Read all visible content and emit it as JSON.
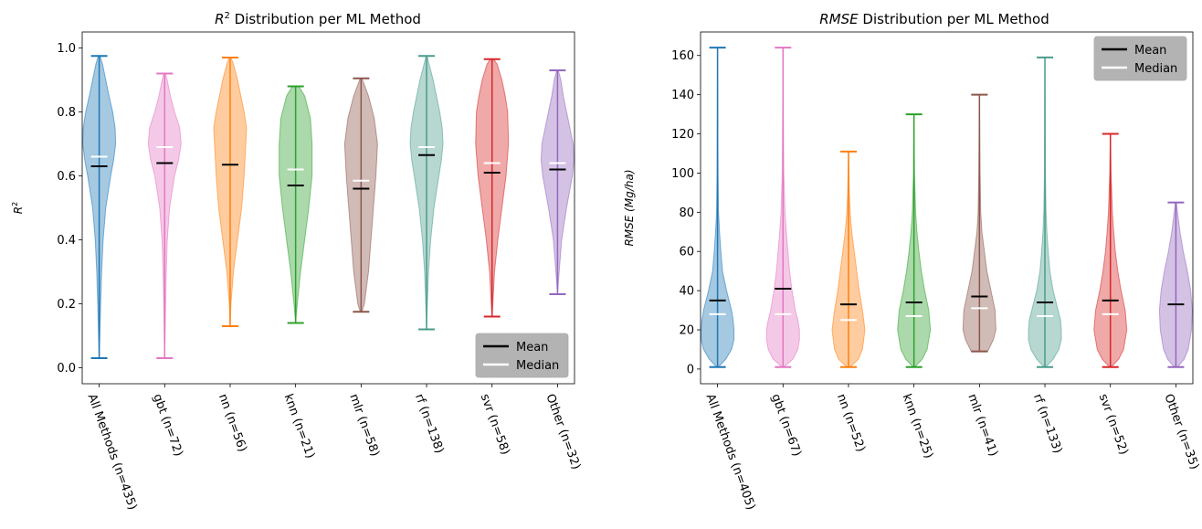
{
  "chart_data": [
    {
      "type": "violin",
      "title_main": "R",
      "title_sup": "2",
      "title_rest": " Distribution per ML Method",
      "ylabel_main": "R",
      "ylabel_sup": "2",
      "ylim": [
        -0.05,
        1.05
      ],
      "yticks": [
        "0.0",
        "0.2",
        "0.4",
        "0.6",
        "0.8",
        "1.0"
      ],
      "ytick_values": [
        0.0,
        0.2,
        0.4,
        0.6,
        0.8,
        1.0
      ],
      "legend": {
        "position": "lower right",
        "entries": [
          "Mean",
          "Median"
        ]
      },
      "series": [
        {
          "name": "All Methods (n=435)",
          "color": "#1f77b4",
          "min": 0.03,
          "max": 0.975,
          "mean": 0.63,
          "median": 0.66,
          "density": [
            [
              0.03,
              0.0
            ],
            [
              0.1,
              0.04
            ],
            [
              0.2,
              0.09
            ],
            [
              0.3,
              0.15
            ],
            [
              0.4,
              0.24
            ],
            [
              0.5,
              0.4
            ],
            [
              0.6,
              0.7
            ],
            [
              0.65,
              0.88
            ],
            [
              0.7,
              1.0
            ],
            [
              0.75,
              0.97
            ],
            [
              0.8,
              0.82
            ],
            [
              0.85,
              0.6
            ],
            [
              0.9,
              0.4
            ],
            [
              0.95,
              0.2
            ],
            [
              0.975,
              0.05
            ]
          ]
        },
        {
          "name": "gbt (n=72)",
          "color": "#e377c2",
          "min": 0.03,
          "max": 0.92,
          "mean": 0.64,
          "median": 0.69,
          "density": [
            [
              0.03,
              0.0
            ],
            [
              0.1,
              0.03
            ],
            [
              0.2,
              0.06
            ],
            [
              0.3,
              0.1
            ],
            [
              0.4,
              0.16
            ],
            [
              0.5,
              0.3
            ],
            [
              0.6,
              0.6
            ],
            [
              0.65,
              0.85
            ],
            [
              0.7,
              1.0
            ],
            [
              0.75,
              0.92
            ],
            [
              0.8,
              0.6
            ],
            [
              0.85,
              0.35
            ],
            [
              0.9,
              0.15
            ],
            [
              0.92,
              0.05
            ]
          ]
        },
        {
          "name": "nn (n=56)",
          "color": "#ff7f0e",
          "min": 0.13,
          "max": 0.97,
          "mean": 0.635,
          "median": 0.635,
          "density": [
            [
              0.13,
              0.0
            ],
            [
              0.2,
              0.05
            ],
            [
              0.3,
              0.2
            ],
            [
              0.4,
              0.45
            ],
            [
              0.5,
              0.7
            ],
            [
              0.6,
              0.85
            ],
            [
              0.7,
              0.95
            ],
            [
              0.75,
              1.0
            ],
            [
              0.8,
              0.85
            ],
            [
              0.85,
              0.65
            ],
            [
              0.9,
              0.45
            ],
            [
              0.95,
              0.2
            ],
            [
              0.97,
              0.05
            ]
          ]
        },
        {
          "name": "knn (n=21)",
          "color": "#2ca02c",
          "min": 0.14,
          "max": 0.88,
          "mean": 0.57,
          "median": 0.62,
          "density": [
            [
              0.14,
              0.0
            ],
            [
              0.2,
              0.1
            ],
            [
              0.3,
              0.3
            ],
            [
              0.4,
              0.55
            ],
            [
              0.5,
              0.8
            ],
            [
              0.6,
              1.0
            ],
            [
              0.7,
              1.0
            ],
            [
              0.78,
              0.9
            ],
            [
              0.85,
              0.55
            ],
            [
              0.88,
              0.2
            ]
          ]
        },
        {
          "name": "mlr (n=58)",
          "color": "#8c564b",
          "min": 0.175,
          "max": 0.905,
          "mean": 0.56,
          "median": 0.585,
          "density": [
            [
              0.175,
              0.05
            ],
            [
              0.2,
              0.2
            ],
            [
              0.3,
              0.45
            ],
            [
              0.4,
              0.6
            ],
            [
              0.5,
              0.75
            ],
            [
              0.6,
              0.9
            ],
            [
              0.7,
              1.0
            ],
            [
              0.78,
              0.8
            ],
            [
              0.85,
              0.45
            ],
            [
              0.905,
              0.05
            ]
          ]
        },
        {
          "name": "rf (n=138)",
          "color": "#4a9c8c",
          "min": 0.12,
          "max": 0.975,
          "mean": 0.665,
          "median": 0.69,
          "density": [
            [
              0.12,
              0.0
            ],
            [
              0.2,
              0.05
            ],
            [
              0.3,
              0.12
            ],
            [
              0.4,
              0.25
            ],
            [
              0.5,
              0.45
            ],
            [
              0.6,
              0.75
            ],
            [
              0.65,
              0.9
            ],
            [
              0.7,
              1.0
            ],
            [
              0.75,
              0.95
            ],
            [
              0.8,
              0.8
            ],
            [
              0.85,
              0.6
            ],
            [
              0.9,
              0.4
            ],
            [
              0.95,
              0.15
            ],
            [
              0.975,
              0.03
            ]
          ]
        },
        {
          "name": "svr (n=58)",
          "color": "#d62728",
          "min": 0.16,
          "max": 0.965,
          "mean": 0.61,
          "median": 0.64,
          "density": [
            [
              0.16,
              0.0
            ],
            [
              0.2,
              0.05
            ],
            [
              0.3,
              0.15
            ],
            [
              0.4,
              0.35
            ],
            [
              0.5,
              0.6
            ],
            [
              0.6,
              0.85
            ],
            [
              0.7,
              1.0
            ],
            [
              0.8,
              0.95
            ],
            [
              0.85,
              0.8
            ],
            [
              0.9,
              0.6
            ],
            [
              0.95,
              0.3
            ],
            [
              0.965,
              0.1
            ]
          ]
        },
        {
          "name": "Other (n=32)",
          "color": "#9467bd",
          "min": 0.23,
          "max": 0.93,
          "mean": 0.62,
          "median": 0.64,
          "density": [
            [
              0.23,
              0.0
            ],
            [
              0.3,
              0.1
            ],
            [
              0.4,
              0.25
            ],
            [
              0.5,
              0.55
            ],
            [
              0.6,
              0.9
            ],
            [
              0.65,
              1.0
            ],
            [
              0.7,
              0.95
            ],
            [
              0.75,
              0.75
            ],
            [
              0.8,
              0.55
            ],
            [
              0.85,
              0.35
            ],
            [
              0.9,
              0.2
            ],
            [
              0.93,
              0.05
            ]
          ]
        }
      ]
    },
    {
      "type": "violin",
      "title_main": "RMSE",
      "title_sup": "",
      "title_rest": " Distribution per ML Method",
      "ylabel_main": "RMSE (Mg/ha)",
      "ylabel_sup": "",
      "ylim": [
        -7.5,
        172
      ],
      "yticks": [
        "0",
        "20",
        "40",
        "60",
        "80",
        "100",
        "120",
        "140",
        "160"
      ],
      "ytick_values": [
        0,
        20,
        40,
        60,
        80,
        100,
        120,
        140,
        160
      ],
      "legend": {
        "position": "upper right",
        "entries": [
          "Mean",
          "Median"
        ]
      },
      "series": [
        {
          "name": "All Methods (n=405)",
          "color": "#1f77b4",
          "min": 1,
          "max": 164,
          "mean": 35,
          "median": 28,
          "density": [
            [
              1,
              0.05
            ],
            [
              5,
              0.5
            ],
            [
              10,
              0.85
            ],
            [
              15,
              1.0
            ],
            [
              20,
              1.0
            ],
            [
              25,
              0.95
            ],
            [
              30,
              0.85
            ],
            [
              40,
              0.55
            ],
            [
              50,
              0.3
            ],
            [
              60,
              0.2
            ],
            [
              70,
              0.12
            ],
            [
              80,
              0.06
            ],
            [
              100,
              0.03
            ],
            [
              130,
              0.015
            ],
            [
              164,
              0.0
            ]
          ]
        },
        {
          "name": "gbt (n=67)",
          "color": "#e377c2",
          "min": 1,
          "max": 164,
          "mean": 41,
          "median": 28,
          "density": [
            [
              1,
              0.05
            ],
            [
              5,
              0.6
            ],
            [
              10,
              0.9
            ],
            [
              15,
              1.0
            ],
            [
              20,
              1.0
            ],
            [
              25,
              0.9
            ],
            [
              30,
              0.75
            ],
            [
              40,
              0.55
            ],
            [
              50,
              0.4
            ],
            [
              60,
              0.3
            ],
            [
              70,
              0.2
            ],
            [
              80,
              0.12
            ],
            [
              100,
              0.05
            ],
            [
              130,
              0.02
            ],
            [
              164,
              0.0
            ]
          ]
        },
        {
          "name": "nn (n=52)",
          "color": "#ff7f0e",
          "min": 1,
          "max": 111,
          "mean": 33,
          "median": 25,
          "density": [
            [
              1,
              0.1
            ],
            [
              5,
              0.6
            ],
            [
              10,
              0.85
            ],
            [
              20,
              1.0
            ],
            [
              30,
              0.85
            ],
            [
              40,
              0.65
            ],
            [
              50,
              0.5
            ],
            [
              60,
              0.35
            ],
            [
              70,
              0.2
            ],
            [
              80,
              0.1
            ],
            [
              90,
              0.05
            ],
            [
              111,
              0.0
            ]
          ]
        },
        {
          "name": "knn (n=25)",
          "color": "#2ca02c",
          "min": 1,
          "max": 130,
          "mean": 34,
          "median": 27,
          "density": [
            [
              1,
              0.05
            ],
            [
              5,
              0.5
            ],
            [
              10,
              0.8
            ],
            [
              20,
              1.0
            ],
            [
              30,
              0.9
            ],
            [
              40,
              0.65
            ],
            [
              50,
              0.45
            ],
            [
              60,
              0.3
            ],
            [
              70,
              0.18
            ],
            [
              80,
              0.1
            ],
            [
              100,
              0.03
            ],
            [
              130,
              0.0
            ]
          ]
        },
        {
          "name": "mlr (n=41)",
          "color": "#8c564b",
          "min": 9,
          "max": 140,
          "mean": 37,
          "median": 31,
          "density": [
            [
              9,
              0.5
            ],
            [
              15,
              0.85
            ],
            [
              20,
              1.0
            ],
            [
              30,
              0.95
            ],
            [
              40,
              0.7
            ],
            [
              50,
              0.45
            ],
            [
              60,
              0.3
            ],
            [
              70,
              0.15
            ],
            [
              80,
              0.08
            ],
            [
              100,
              0.04
            ],
            [
              140,
              0.0
            ]
          ]
        },
        {
          "name": "rf (n=133)",
          "color": "#4a9c8c",
          "min": 1,
          "max": 159,
          "mean": 34,
          "median": 27,
          "density": [
            [
              1,
              0.05
            ],
            [
              5,
              0.5
            ],
            [
              10,
              0.85
            ],
            [
              15,
              1.0
            ],
            [
              20,
              1.0
            ],
            [
              25,
              0.95
            ],
            [
              30,
              0.8
            ],
            [
              40,
              0.5
            ],
            [
              50,
              0.3
            ],
            [
              60,
              0.2
            ],
            [
              70,
              0.12
            ],
            [
              80,
              0.07
            ],
            [
              100,
              0.03
            ],
            [
              130,
              0.015
            ],
            [
              159,
              0.0
            ]
          ]
        },
        {
          "name": "svr (n=52)",
          "color": "#d62728",
          "min": 1,
          "max": 120,
          "mean": 35,
          "median": 28,
          "density": [
            [
              1,
              0.05
            ],
            [
              5,
              0.5
            ],
            [
              10,
              0.8
            ],
            [
              20,
              1.0
            ],
            [
              30,
              0.9
            ],
            [
              40,
              0.65
            ],
            [
              50,
              0.45
            ],
            [
              60,
              0.3
            ],
            [
              70,
              0.2
            ],
            [
              80,
              0.12
            ],
            [
              100,
              0.04
            ],
            [
              120,
              0.0
            ]
          ]
        },
        {
          "name": "Other (n=35)",
          "color": "#9467bd",
          "min": 1,
          "max": 85,
          "mean": 33,
          "median": 33,
          "density": [
            [
              1,
              0.1
            ],
            [
              5,
              0.5
            ],
            [
              10,
              0.75
            ],
            [
              20,
              0.95
            ],
            [
              30,
              1.0
            ],
            [
              40,
              0.9
            ],
            [
              50,
              0.7
            ],
            [
              60,
              0.45
            ],
            [
              70,
              0.25
            ],
            [
              80,
              0.1
            ],
            [
              85,
              0.03
            ]
          ]
        }
      ]
    }
  ]
}
